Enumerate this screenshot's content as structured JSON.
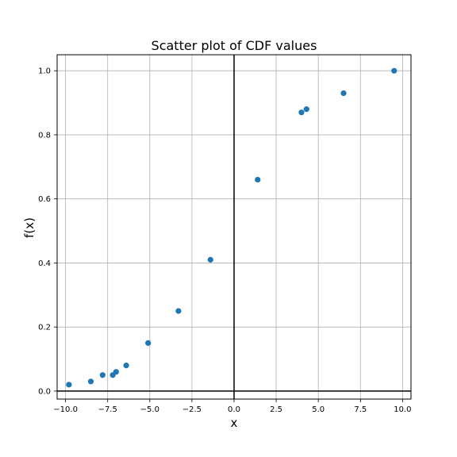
{
  "chart_data": {
    "type": "scatter",
    "title": "Scatter plot of CDF values",
    "xlabel": "x",
    "ylabel": "f(x)",
    "xlim": [
      -10.5,
      10.5
    ],
    "ylim": [
      -0.025,
      1.05
    ],
    "xticks": [
      -10.0,
      -7.5,
      -5.0,
      -2.5,
      0.0,
      2.5,
      5.0,
      7.5,
      10.0
    ],
    "xtick_labels": [
      "−10.0",
      "−7.5",
      "−5.0",
      "−2.5",
      "0.0",
      "2.5",
      "5.0",
      "7.5",
      "10.0"
    ],
    "yticks": [
      0.0,
      0.2,
      0.4,
      0.6,
      0.8,
      1.0
    ],
    "ytick_labels": [
      "0.0",
      "0.2",
      "0.4",
      "0.6",
      "0.8",
      "1.0"
    ],
    "grid": true,
    "zero_lines": true,
    "marker_color": "#1f77b4",
    "points": [
      {
        "x": -9.8,
        "y": 0.02
      },
      {
        "x": -8.5,
        "y": 0.03
      },
      {
        "x": -7.8,
        "y": 0.05
      },
      {
        "x": -7.2,
        "y": 0.05
      },
      {
        "x": -7.0,
        "y": 0.06
      },
      {
        "x": -6.4,
        "y": 0.08
      },
      {
        "x": -5.1,
        "y": 0.15
      },
      {
        "x": -3.3,
        "y": 0.25
      },
      {
        "x": -1.4,
        "y": 0.41
      },
      {
        "x": 1.4,
        "y": 0.66
      },
      {
        "x": 4.0,
        "y": 0.87
      },
      {
        "x": 4.3,
        "y": 0.88
      },
      {
        "x": 6.5,
        "y": 0.93
      },
      {
        "x": 9.5,
        "y": 1.0
      }
    ]
  }
}
